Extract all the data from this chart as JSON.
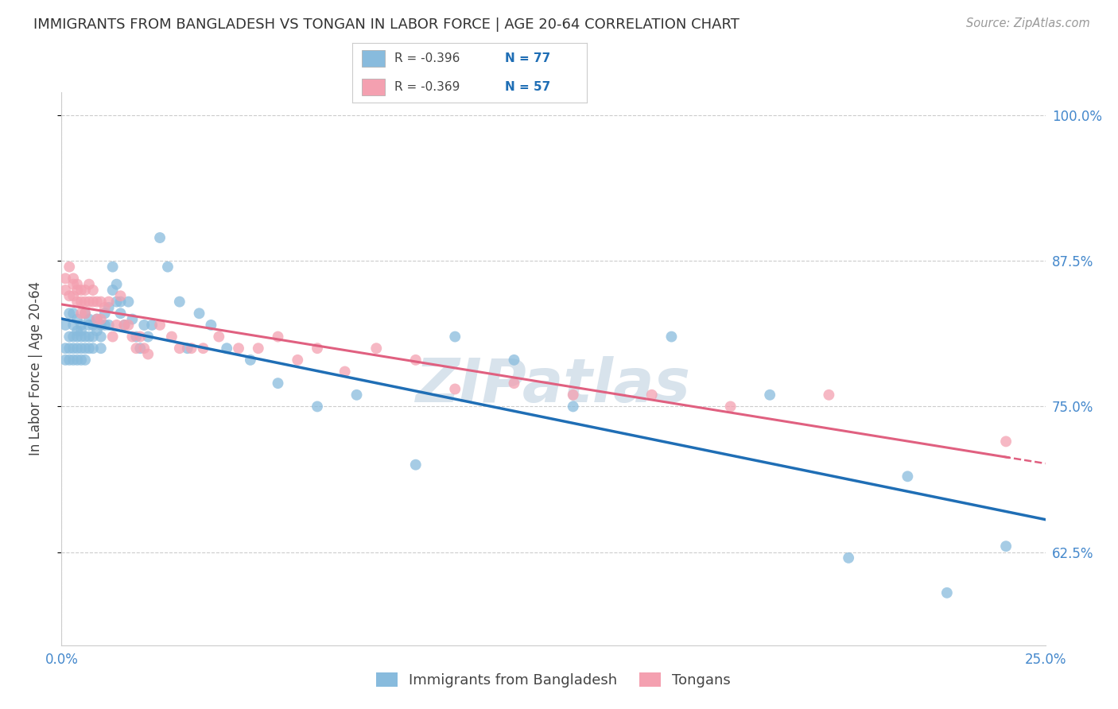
{
  "title": "IMMIGRANTS FROM BANGLADESH VS TONGAN IN LABOR FORCE | AGE 20-64 CORRELATION CHART",
  "source": "Source: ZipAtlas.com",
  "ylabel": "In Labor Force | Age 20-64",
  "xlim": [
    0.0,
    0.25
  ],
  "ylim": [
    0.545,
    1.02
  ],
  "yticks": [
    0.625,
    0.75,
    0.875,
    1.0
  ],
  "ytick_labels": [
    "62.5%",
    "75.0%",
    "87.5%",
    "100.0%"
  ],
  "xticks": [
    0.0,
    0.05,
    0.1,
    0.15,
    0.2,
    0.25
  ],
  "xtick_labels": [
    "0.0%",
    "",
    "",
    "",
    "",
    "25.0%"
  ],
  "blue_R": -0.396,
  "blue_N": 77,
  "pink_R": -0.369,
  "pink_N": 57,
  "blue_color": "#88bbdd",
  "pink_color": "#f4a0b0",
  "blue_line_color": "#1f6eb5",
  "pink_line_color": "#e06080",
  "watermark": "ZIPatlas",
  "background_color": "#ffffff",
  "grid_color": "#cccccc",
  "blue_x": [
    0.001,
    0.001,
    0.001,
    0.002,
    0.002,
    0.002,
    0.002,
    0.003,
    0.003,
    0.003,
    0.003,
    0.003,
    0.004,
    0.004,
    0.004,
    0.004,
    0.004,
    0.005,
    0.005,
    0.005,
    0.005,
    0.005,
    0.006,
    0.006,
    0.006,
    0.006,
    0.007,
    0.007,
    0.007,
    0.007,
    0.008,
    0.008,
    0.008,
    0.009,
    0.009,
    0.01,
    0.01,
    0.01,
    0.011,
    0.011,
    0.012,
    0.012,
    0.013,
    0.013,
    0.014,
    0.014,
    0.015,
    0.015,
    0.016,
    0.017,
    0.018,
    0.019,
    0.02,
    0.021,
    0.022,
    0.023,
    0.025,
    0.027,
    0.03,
    0.032,
    0.035,
    0.038,
    0.042,
    0.048,
    0.055,
    0.065,
    0.075,
    0.09,
    0.1,
    0.115,
    0.13,
    0.155,
    0.18,
    0.2,
    0.215,
    0.225,
    0.24
  ],
  "blue_y": [
    0.8,
    0.79,
    0.82,
    0.81,
    0.79,
    0.8,
    0.83,
    0.81,
    0.8,
    0.79,
    0.82,
    0.83,
    0.81,
    0.8,
    0.79,
    0.825,
    0.815,
    0.81,
    0.8,
    0.79,
    0.815,
    0.82,
    0.81,
    0.8,
    0.79,
    0.83,
    0.82,
    0.81,
    0.8,
    0.825,
    0.82,
    0.81,
    0.8,
    0.825,
    0.815,
    0.82,
    0.81,
    0.8,
    0.83,
    0.82,
    0.835,
    0.82,
    0.87,
    0.85,
    0.84,
    0.855,
    0.84,
    0.83,
    0.82,
    0.84,
    0.825,
    0.81,
    0.8,
    0.82,
    0.81,
    0.82,
    0.895,
    0.87,
    0.84,
    0.8,
    0.83,
    0.82,
    0.8,
    0.79,
    0.77,
    0.75,
    0.76,
    0.7,
    0.81,
    0.79,
    0.75,
    0.81,
    0.76,
    0.62,
    0.69,
    0.59,
    0.63
  ],
  "pink_x": [
    0.001,
    0.001,
    0.002,
    0.002,
    0.003,
    0.003,
    0.003,
    0.004,
    0.004,
    0.004,
    0.005,
    0.005,
    0.005,
    0.006,
    0.006,
    0.006,
    0.007,
    0.007,
    0.008,
    0.008,
    0.009,
    0.009,
    0.01,
    0.01,
    0.011,
    0.012,
    0.013,
    0.014,
    0.015,
    0.016,
    0.017,
    0.018,
    0.019,
    0.02,
    0.021,
    0.022,
    0.025,
    0.028,
    0.03,
    0.033,
    0.036,
    0.04,
    0.045,
    0.05,
    0.055,
    0.06,
    0.065,
    0.072,
    0.08,
    0.09,
    0.1,
    0.115,
    0.13,
    0.15,
    0.17,
    0.195,
    0.24
  ],
  "pink_y": [
    0.85,
    0.86,
    0.845,
    0.87,
    0.855,
    0.86,
    0.845,
    0.855,
    0.84,
    0.85,
    0.85,
    0.84,
    0.83,
    0.85,
    0.84,
    0.83,
    0.855,
    0.84,
    0.85,
    0.84,
    0.84,
    0.825,
    0.84,
    0.825,
    0.835,
    0.84,
    0.81,
    0.82,
    0.845,
    0.82,
    0.82,
    0.81,
    0.8,
    0.81,
    0.8,
    0.795,
    0.82,
    0.81,
    0.8,
    0.8,
    0.8,
    0.81,
    0.8,
    0.8,
    0.81,
    0.79,
    0.8,
    0.78,
    0.8,
    0.79,
    0.765,
    0.77,
    0.76,
    0.76,
    0.75,
    0.76,
    0.72
  ]
}
